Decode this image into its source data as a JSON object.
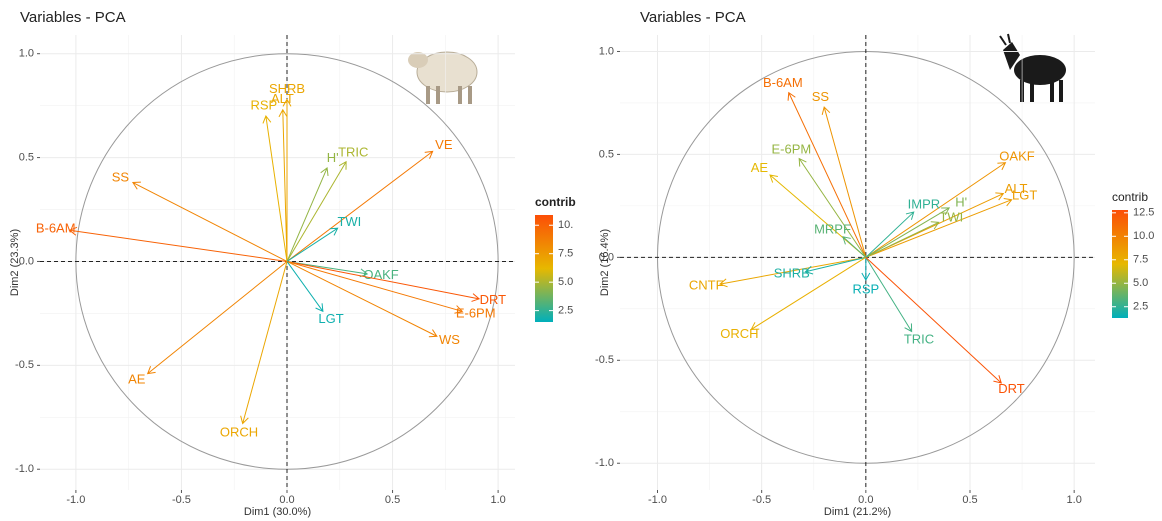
{
  "chart_data": [
    {
      "type": "pca-variables",
      "title": "Variables - PCA",
      "x_label": "Dim1 (30.0%)",
      "y_label": "Dim2 (23.3%)",
      "xlim": [
        -1.17,
        1.08
      ],
      "ylim": [
        -1.1,
        1.09
      ],
      "xticks": [
        {
          "value": -1,
          "label": "-1.0"
        },
        {
          "value": -0.5,
          "label": "-0.5"
        },
        {
          "value": 0,
          "label": "0.0"
        },
        {
          "value": 0.5,
          "label": "0.5"
        },
        {
          "value": 1,
          "label": "1.0"
        }
      ],
      "yticks": [
        {
          "value": -1,
          "label": "-1.0"
        },
        {
          "value": -0.5,
          "label": "-0.5"
        },
        {
          "value": 0,
          "label": "0.0"
        },
        {
          "value": 0.5,
          "label": "0.5"
        },
        {
          "value": 1,
          "label": "1.0"
        }
      ],
      "grid": true,
      "labels": [
        "SHRB",
        "ALT",
        "RSP",
        "VE",
        "TRIC",
        "H'",
        "SS",
        "B-6AM",
        "TWI",
        "OAKF",
        "DRT",
        "E-6PM",
        "WS",
        "LGT",
        "AE",
        "ORCH"
      ],
      "x": [
        0.0,
        -0.02,
        -0.1,
        0.69,
        0.28,
        0.19,
        -0.73,
        -1.03,
        0.24,
        0.38,
        0.91,
        0.83,
        0.71,
        0.17,
        -0.66,
        -0.21
      ],
      "y": [
        0.78,
        0.73,
        0.7,
        0.53,
        0.48,
        0.45,
        0.38,
        0.15,
        0.16,
        -0.06,
        -0.18,
        -0.24,
        -0.36,
        -0.24,
        -0.54,
        -0.78
      ],
      "contrib": [
        7,
        7,
        6.5,
        9,
        5,
        4.5,
        8.5,
        10,
        2,
        3,
        10.5,
        9,
        8.5,
        1.8,
        8.5,
        7
      ],
      "legend_title": "contrib",
      "legend_title_bold": true,
      "contrib_lim": [
        1.5,
        10.9
      ],
      "contrib_ticks": [
        {
          "value": 10,
          "label": "10."
        },
        7.5,
        {
          "value": 5,
          "label": "5.0"
        },
        2.5
      ],
      "gradient_colors": [
        "#00AFBB",
        "#E7B800",
        "#FC4E07"
      ]
    },
    {
      "type": "pca-variables",
      "title": "Variables - PCA",
      "x_label": "Dim1 (21.2%)",
      "y_label": "Dim2 (16.4%)",
      "xlim": [
        -1.18,
        1.1
      ],
      "ylim": [
        -1.13,
        1.08
      ],
      "xticks": [
        {
          "value": -1,
          "label": "-1.0"
        },
        {
          "value": -0.5,
          "label": "-0.5"
        },
        {
          "value": 0,
          "label": "0.0"
        },
        {
          "value": 0.5,
          "label": "0.5"
        },
        {
          "value": 1,
          "label": "1.0"
        }
      ],
      "yticks": [
        {
          "value": -1,
          "label": "-1.0"
        },
        {
          "value": -0.5,
          "label": "-0.5"
        },
        {
          "value": 0,
          "label": "0.0"
        },
        {
          "value": 0.5,
          "label": "0.5"
        },
        {
          "value": 1,
          "label": "1.0"
        }
      ],
      "grid": true,
      "labels": [
        "B-6AM",
        "SS",
        "E-6PM",
        "AE",
        "OAKF",
        "ALT",
        "LGT",
        "H'",
        "TWI",
        "IMPR",
        "MRPF",
        "CNTF",
        "SHRB",
        "RSP",
        "ORCH",
        "TRIC",
        "DRT"
      ],
      "x": [
        -0.37,
        -0.2,
        -0.32,
        -0.46,
        0.67,
        0.66,
        0.7,
        0.4,
        0.35,
        0.23,
        -0.11,
        -0.7,
        -0.29,
        0.0,
        -0.55,
        0.22,
        0.65
      ],
      "y": [
        0.8,
        0.73,
        0.48,
        0.4,
        0.46,
        0.31,
        0.28,
        0.24,
        0.17,
        0.22,
        0.1,
        -0.13,
        -0.07,
        -0.11,
        -0.35,
        -0.36,
        -0.61
      ],
      "contrib": [
        11,
        9,
        5,
        7,
        9,
        8.5,
        8.5,
        4.5,
        5,
        2.5,
        3.5,
        8,
        2,
        1.5,
        7.5,
        3,
        12.5
      ],
      "legend_title": "contrib",
      "legend_title_bold": false,
      "contrib_lim": [
        1.3,
        12.8
      ],
      "contrib_ticks": [
        12.5,
        {
          "value": 10,
          "label": "10.0"
        },
        7.5,
        {
          "value": 5,
          "label": "5.0"
        },
        2.5
      ],
      "gradient_colors": [
        "#00AFBB",
        "#E7B800",
        "#FC4E07"
      ]
    }
  ]
}
